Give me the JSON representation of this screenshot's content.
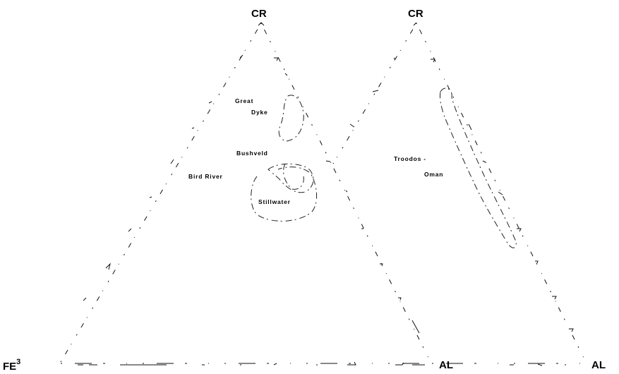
{
  "diagram": {
    "left_triangle": {
      "apex_top": "CR",
      "apex_left": "FE",
      "apex_left_superscript": "3",
      "apex_right": "AL",
      "fields": [
        "Great",
        "Dyke",
        "Bushveld",
        "Bird River",
        "Stillwater"
      ]
    },
    "right_triangle": {
      "apex_top": "CR",
      "apex_right": "AL",
      "fields": [
        "Troodos -",
        "Oman"
      ]
    }
  }
}
